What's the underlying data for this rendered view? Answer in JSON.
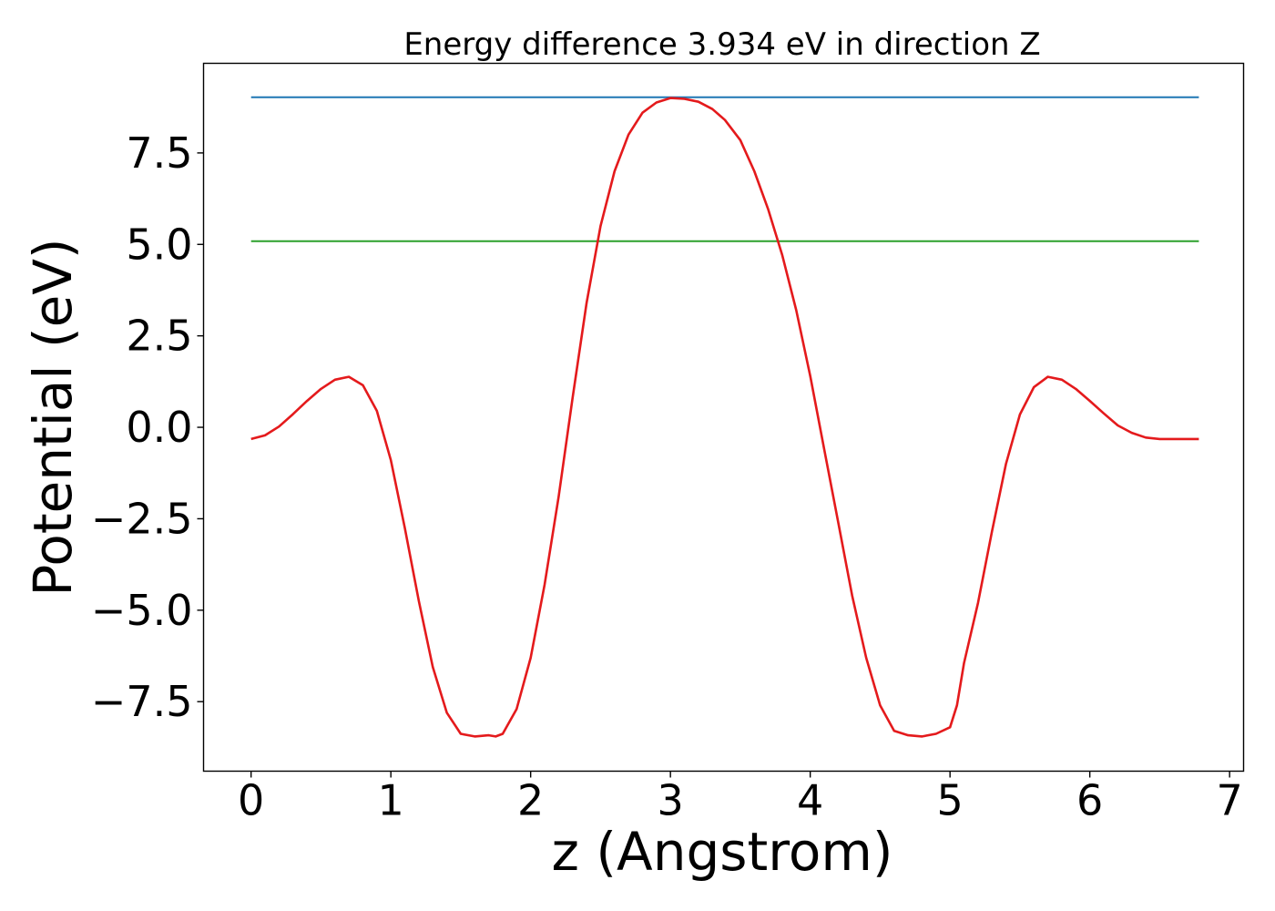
{
  "chart_data": {
    "type": "line",
    "title": "Energy difference 3.934 eV in direction Z",
    "xlabel": "z (Angstrom)",
    "ylabel": "Potential (eV)",
    "xlim": [
      -0.34,
      7.1
    ],
    "ylim": [
      -9.4,
      9.95
    ],
    "xticks": [
      0,
      1,
      2,
      3,
      4,
      5,
      6,
      7
    ],
    "xtick_labels": [
      "0",
      "1",
      "2",
      "3",
      "4",
      "5",
      "6",
      "7"
    ],
    "yticks": [
      7.5,
      5.0,
      2.5,
      0.0,
      -2.5,
      -5.0,
      -7.5
    ],
    "ytick_labels": [
      "7.5",
      "5.0",
      "2.5",
      "0.0",
      "−2.5",
      "−5.0",
      "−7.5"
    ],
    "grid": false,
    "series": [
      {
        "color": "#1f77b4",
        "x": [
          0,
          6.78
        ],
        "y": [
          9.02,
          9.02
        ]
      },
      {
        "color": "#2ca02c",
        "x": [
          0,
          6.78
        ],
        "y": [
          5.09,
          5.09
        ]
      },
      {
        "color": "#e41a1c",
        "x": [
          0.0,
          0.1,
          0.2,
          0.3,
          0.4,
          0.5,
          0.6,
          0.7,
          0.8,
          0.9,
          1.0,
          1.1,
          1.2,
          1.3,
          1.4,
          1.5,
          1.6,
          1.7,
          1.75,
          1.8,
          1.9,
          2.0,
          2.1,
          2.2,
          2.3,
          2.4,
          2.5,
          2.6,
          2.7,
          2.8,
          2.9,
          3.0,
          3.1,
          3.2,
          3.3,
          3.39,
          3.5,
          3.6,
          3.7,
          3.8,
          3.9,
          4.0,
          4.1,
          4.2,
          4.3,
          4.4,
          4.5,
          4.6,
          4.7,
          4.8,
          4.9,
          5.0,
          5.05,
          5.1,
          5.2,
          5.3,
          5.4,
          5.5,
          5.6,
          5.7,
          5.8,
          5.9,
          6.0,
          6.1,
          6.2,
          6.3,
          6.4,
          6.5,
          6.6,
          6.7,
          6.78
        ],
        "y": [
          -0.32,
          -0.22,
          0.02,
          0.36,
          0.72,
          1.05,
          1.3,
          1.38,
          1.15,
          0.45,
          -0.9,
          -2.75,
          -4.75,
          -6.55,
          -7.8,
          -8.38,
          -8.45,
          -8.42,
          -8.45,
          -8.38,
          -7.7,
          -6.3,
          -4.3,
          -1.9,
          0.8,
          3.4,
          5.5,
          7.0,
          8.0,
          8.6,
          8.88,
          9.0,
          8.98,
          8.9,
          8.7,
          8.4,
          7.85,
          7.0,
          5.95,
          4.7,
          3.2,
          1.4,
          -0.6,
          -2.6,
          -4.6,
          -6.3,
          -7.6,
          -8.3,
          -8.42,
          -8.45,
          -8.38,
          -8.2,
          -7.6,
          -6.45,
          -4.8,
          -2.85,
          -1.0,
          0.35,
          1.1,
          1.38,
          1.3,
          1.05,
          0.72,
          0.38,
          0.05,
          -0.15,
          -0.28,
          -0.32,
          -0.32,
          -0.32,
          -0.32
        ]
      }
    ]
  }
}
